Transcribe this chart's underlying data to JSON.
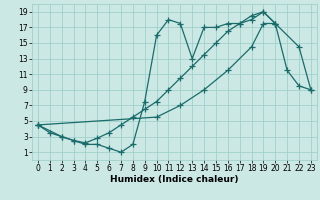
{
  "bg_color": "#cce8e4",
  "grid_color": "#99ccc7",
  "line_color": "#1a6b6b",
  "marker": "+",
  "markersize": 4,
  "linewidth": 0.9,
  "markeredgewidth": 0.9,
  "xlabel": "Humidex (Indice chaleur)",
  "xlabel_fontsize": 6.5,
  "tick_fontsize": 5.5,
  "xlim": [
    -0.5,
    23.5
  ],
  "ylim": [
    0,
    20
  ],
  "xticks": [
    0,
    1,
    2,
    3,
    4,
    5,
    6,
    7,
    8,
    9,
    10,
    11,
    12,
    13,
    14,
    15,
    16,
    17,
    18,
    19,
    20,
    21,
    22,
    23
  ],
  "yticks": [
    1,
    3,
    5,
    7,
    9,
    11,
    13,
    15,
    17,
    19
  ],
  "line1_x": [
    0,
    1,
    2,
    3,
    4,
    5,
    6,
    7,
    8,
    9,
    10,
    11,
    12,
    13,
    14,
    15,
    16,
    17,
    18,
    19,
    20,
    21,
    22,
    23
  ],
  "line1_y": [
    4.5,
    3.5,
    3.0,
    2.5,
    2.0,
    2.0,
    1.5,
    1.0,
    2.0,
    7.5,
    16.0,
    18.0,
    17.5,
    13.0,
    17.0,
    17.0,
    17.5,
    17.5,
    18.0,
    19.0,
    17.5,
    11.5,
    9.5,
    9.0
  ],
  "line2_x": [
    0,
    2,
    3,
    4,
    5,
    6,
    7,
    8,
    9,
    10,
    11,
    12,
    13,
    14,
    15,
    16,
    17,
    18,
    19,
    20
  ],
  "line2_y": [
    4.5,
    3.0,
    2.5,
    2.2,
    2.8,
    3.5,
    4.5,
    5.5,
    6.5,
    7.5,
    9.0,
    10.5,
    12.0,
    13.5,
    15.0,
    16.5,
    17.5,
    18.5,
    19.0,
    17.5
  ],
  "line3_x": [
    0,
    10,
    12,
    14,
    16,
    18,
    19,
    20,
    22,
    23
  ],
  "line3_y": [
    4.5,
    5.5,
    7.0,
    9.0,
    11.5,
    14.5,
    17.5,
    17.5,
    14.5,
    9.0
  ]
}
